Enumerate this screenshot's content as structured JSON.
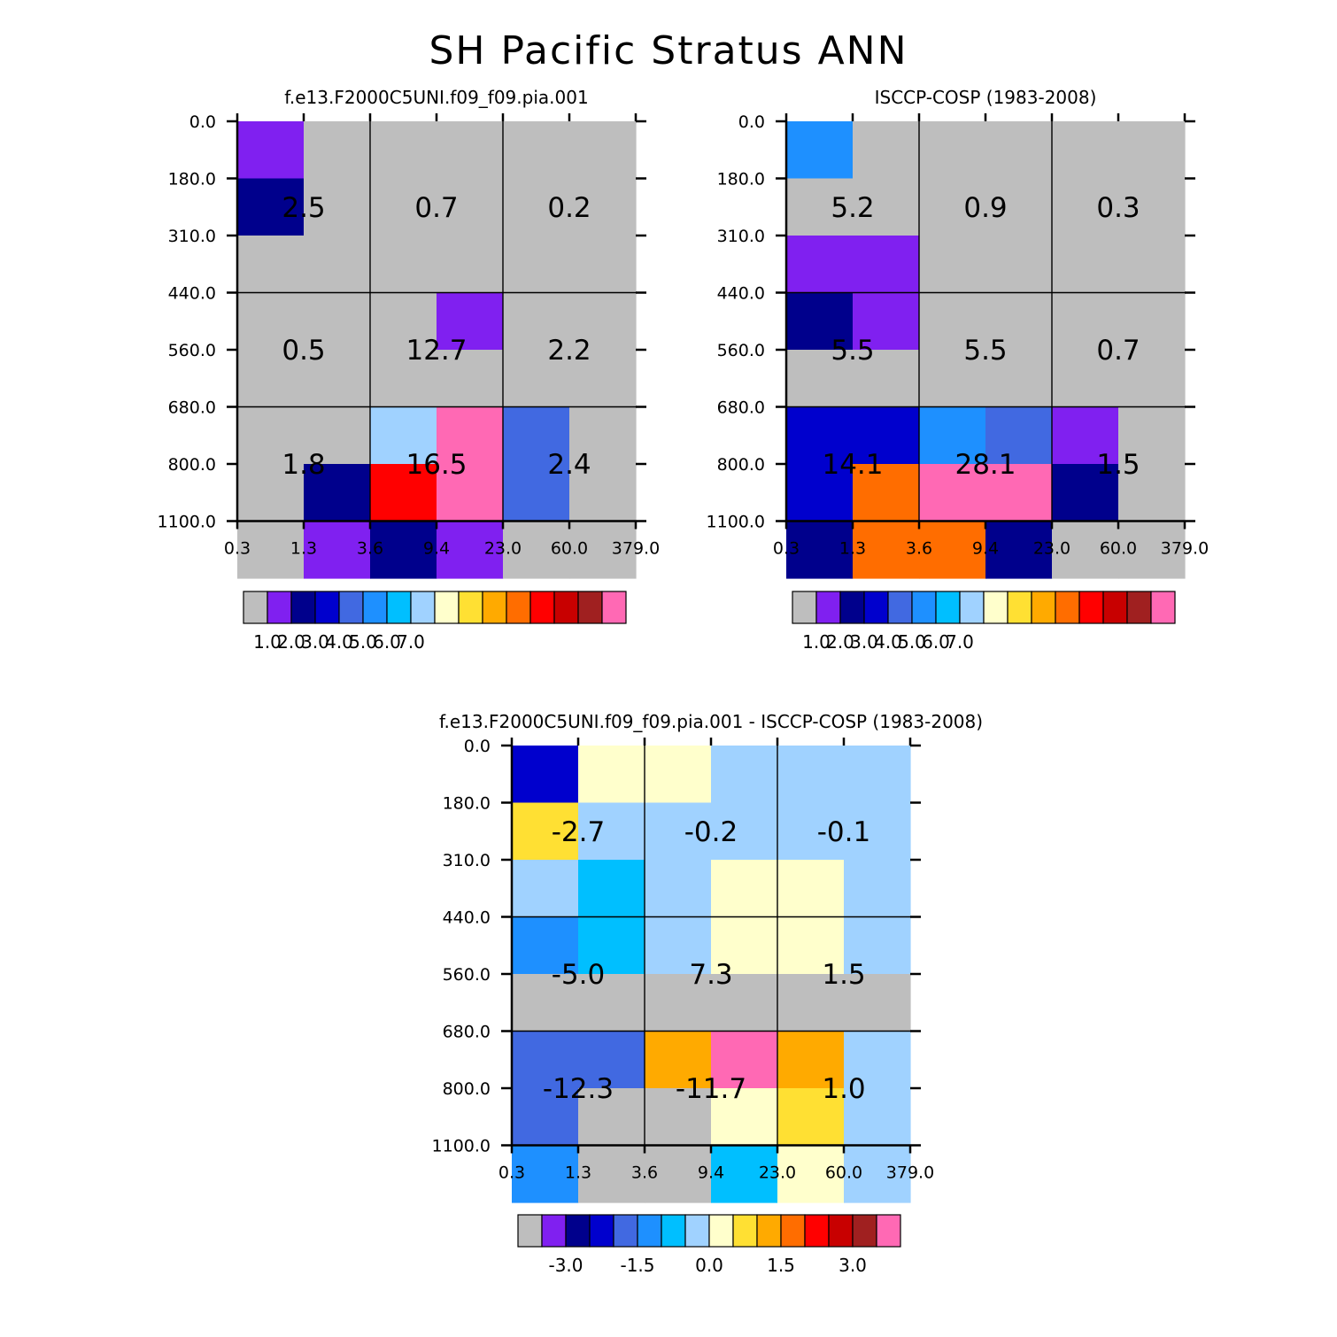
{
  "title": "SH Pacific Stratus ANN",
  "colors": {
    "missing": "#bebebe",
    "palette": [
      "#8020f0",
      "#00008c",
      "#0000cd",
      "#4169e1",
      "#1e90ff",
      "#00bfff",
      "#a0d2ff",
      "#ffffcc",
      "#ffe033",
      "#ffaa00",
      "#ff6d00",
      "#ff0000",
      "#c80000",
      "#a02020",
      "#ff69b4"
    ],
    "grid_line": "#000000"
  },
  "chart_data": [
    {
      "type": "heatmap",
      "name": "model",
      "title": "f.e13.F2000C5UNI.f09_f09.pia.001",
      "xticks": [
        "0.3",
        "1.3",
        "3.6",
        "9.4",
        "23.0",
        "60.0",
        "379.0"
      ],
      "yticks": [
        "0.0",
        "180.0",
        "310.0",
        "440.0",
        "560.0",
        "680.0",
        "800.0",
        "1100.0"
      ],
      "cells": [
        [
          1,
          0,
          0,
          0,
          0,
          0
        ],
        [
          2,
          0,
          0,
          0,
          0,
          0
        ],
        [
          0,
          0,
          0,
          0,
          0,
          0
        ],
        [
          0,
          0,
          0,
          1,
          0,
          0
        ],
        [
          0,
          0,
          0,
          0,
          0,
          0
        ],
        [
          0,
          0,
          7,
          15,
          4,
          0
        ],
        [
          0,
          2,
          12,
          15,
          4,
          0
        ],
        [
          0,
          1,
          2,
          1,
          0,
          0
        ]
      ],
      "group_labels": [
        [
          "2.5",
          "0.7",
          "0.2"
        ],
        [
          "0.5",
          "12.7",
          "2.2"
        ],
        [
          "1.8",
          "16.5",
          "2.4"
        ]
      ],
      "colorbar_ticks": [
        "1.0",
        "2.0",
        "3.0",
        "4.0",
        "5.0",
        "6.0",
        "7.0"
      ]
    },
    {
      "type": "heatmap",
      "name": "obs",
      "title": "ISCCP-COSP (1983-2008)",
      "xticks": [
        "0.3",
        "1.3",
        "3.6",
        "9.4",
        "23.0",
        "60.0",
        "379.0"
      ],
      "yticks": [
        "0.0",
        "180.0",
        "310.0",
        "440.0",
        "560.0",
        "680.0",
        "800.0",
        "1100.0"
      ],
      "cells": [
        [
          5,
          0,
          0,
          0,
          0,
          0
        ],
        [
          0,
          0,
          0,
          0,
          0,
          0
        ],
        [
          1,
          1,
          0,
          0,
          0,
          0
        ],
        [
          2,
          1,
          0,
          0,
          0,
          0
        ],
        [
          0,
          0,
          0,
          0,
          0,
          0
        ],
        [
          3,
          3,
          5,
          4,
          1,
          0
        ],
        [
          3,
          11,
          15,
          15,
          2,
          0
        ],
        [
          2,
          11,
          11,
          2,
          0,
          0
        ]
      ],
      "group_labels": [
        [
          "5.2",
          "0.9",
          "0.3"
        ],
        [
          "5.5",
          "5.5",
          "0.7"
        ],
        [
          "14.1",
          "28.1",
          "1.5"
        ]
      ],
      "colorbar_ticks": [
        "1.0",
        "2.0",
        "3.0",
        "4.0",
        "5.0",
        "6.0",
        "7.0"
      ]
    },
    {
      "type": "heatmap",
      "name": "diff",
      "title": "f.e13.F2000C5UNI.f09_f09.pia.001 - ISCCP-COSP (1983-2008)",
      "xticks": [
        "0.3",
        "1.3",
        "3.6",
        "9.4",
        "23.0",
        "60.0",
        "379.0"
      ],
      "yticks": [
        "0.0",
        "180.0",
        "310.0",
        "440.0",
        "560.0",
        "680.0",
        "800.0",
        "1100.0"
      ],
      "cells": [
        [
          3,
          8,
          8,
          7,
          7,
          7
        ],
        [
          9,
          7,
          7,
          7,
          7,
          7
        ],
        [
          7,
          6,
          7,
          8,
          8,
          7
        ],
        [
          5,
          6,
          7,
          8,
          8,
          7
        ],
        [
          0,
          0,
          0,
          0,
          0,
          0
        ],
        [
          4,
          4,
          10,
          15,
          10,
          7
        ],
        [
          4,
          0,
          0,
          8,
          9,
          7
        ],
        [
          5,
          0,
          0,
          6,
          8,
          7
        ]
      ],
      "group_labels": [
        [
          "-2.7",
          "-0.2",
          "-0.1"
        ],
        [
          "-5.0",
          "7.3",
          "1.5"
        ],
        [
          "-12.3",
          "-11.7",
          "1.0"
        ]
      ],
      "colorbar_ticks": [
        "-3.0",
        "-1.5",
        "0.0",
        "1.5",
        "3.0"
      ]
    }
  ]
}
